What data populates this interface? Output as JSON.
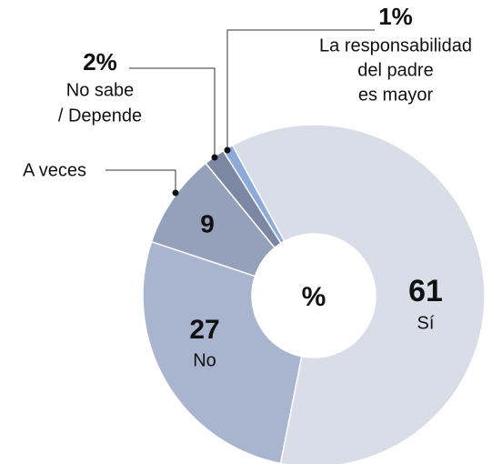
{
  "chart_data": {
    "type": "donut",
    "center_label": "%",
    "categories": [
      "Sí",
      "No",
      "A veces",
      "No sabe / Depende",
      "La responsabilidad del padre es mayor"
    ],
    "category_lines": [
      [
        "Sí"
      ],
      [
        "No"
      ],
      [
        "A veces"
      ],
      [
        "No sabe",
        "/ Depende"
      ],
      [
        "La responsabilidad",
        "del padre",
        "es mayor"
      ]
    ],
    "values": [
      61,
      27,
      9,
      2,
      1
    ],
    "value_labels": [
      "61",
      "27",
      "9",
      "2%",
      "1%"
    ],
    "colors": [
      "#d8dde8",
      "#a9b5ce",
      "#95a1bb",
      "#7b87a3",
      "#8eaad8"
    ]
  }
}
